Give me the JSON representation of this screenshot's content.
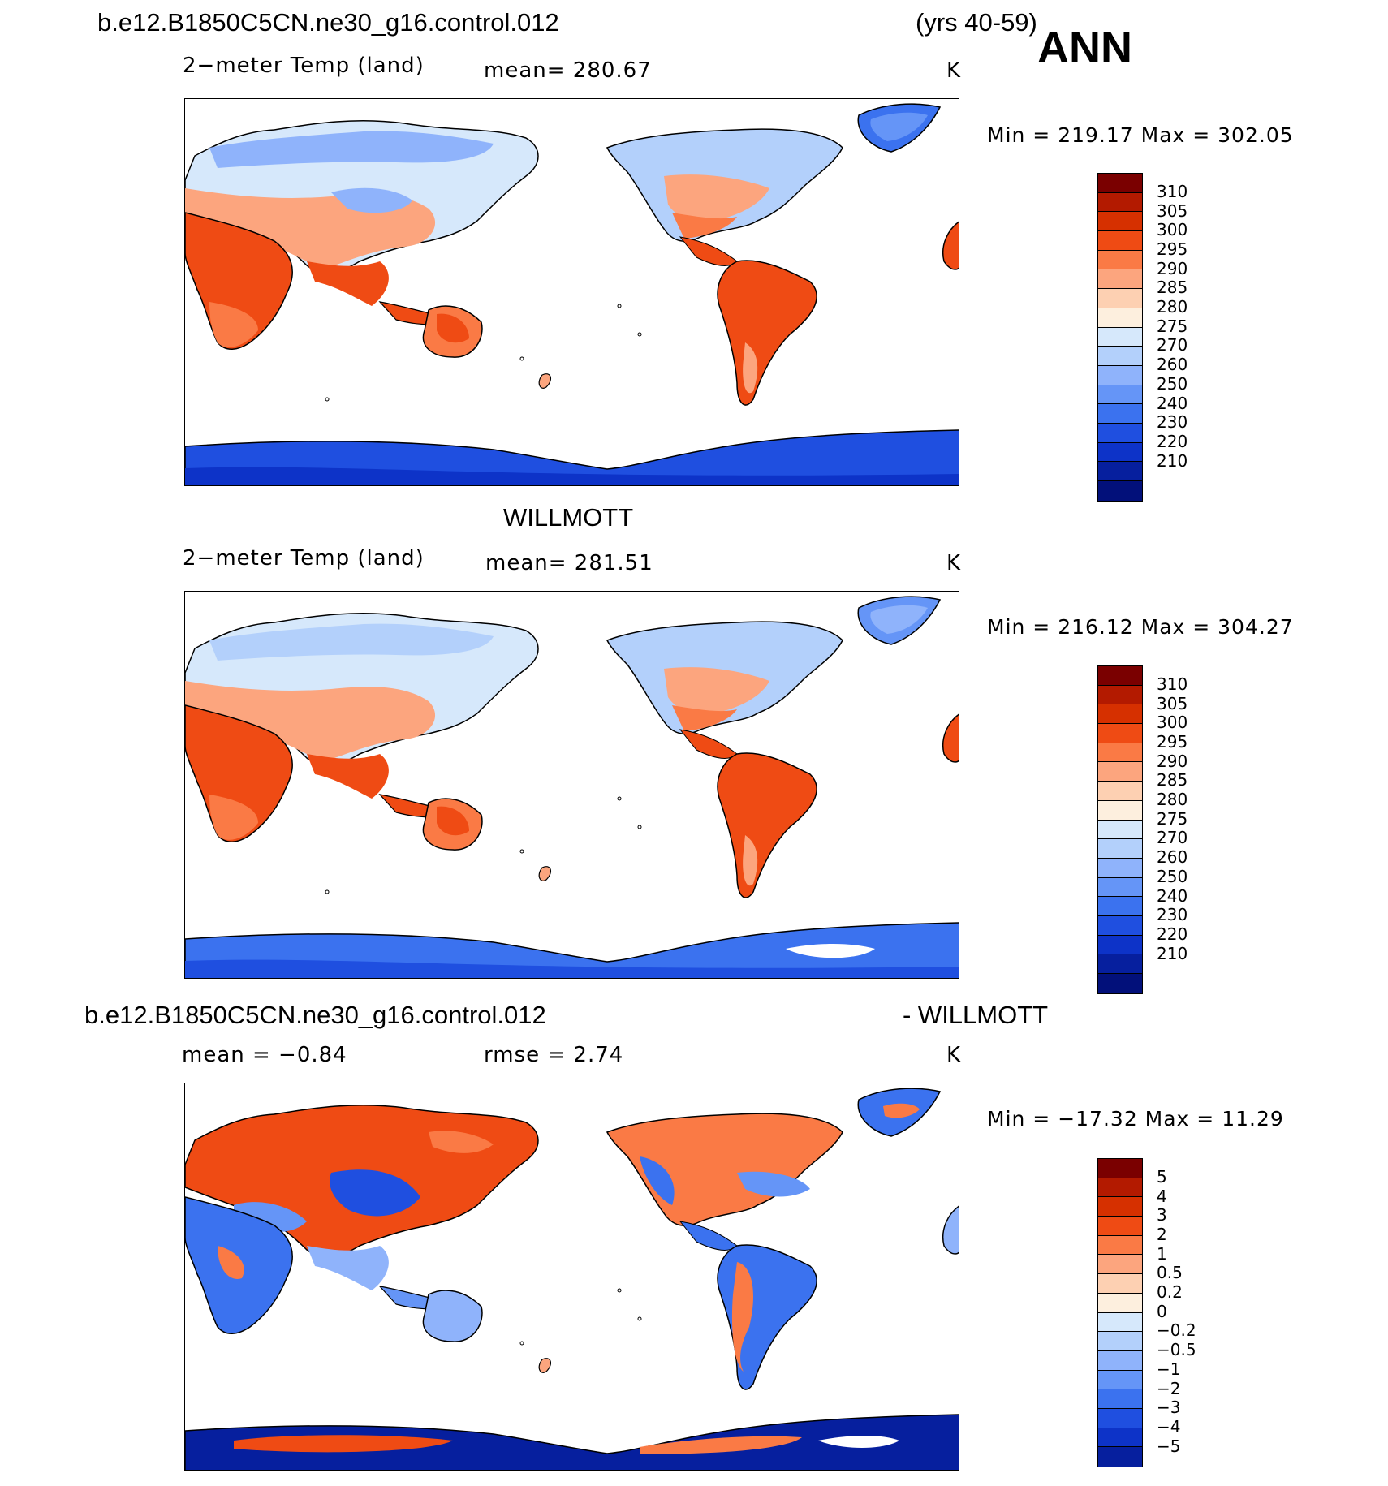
{
  "header": {
    "case_name": "b.e12.B1850C5CN.ne30_g16.control.012",
    "years": "(yrs 40-59)",
    "season": "ANN"
  },
  "panels": [
    {
      "title": "",
      "variable": "2−meter Temp (land)",
      "stat1": "mean=  280.67",
      "stat2": "",
      "units": "K",
      "minmax": "Min  =  219.17  Max  =  302.05",
      "map_type": "absolute"
    },
    {
      "title": "WILLMOTT",
      "variable": "2−meter Temp (land)",
      "stat1": "mean=  281.51",
      "stat2": "",
      "units": "K",
      "minmax": "Min  =  216.12  Max  =  304.27",
      "map_type": "absolute"
    },
    {
      "title_left": "b.e12.B1850C5CN.ne30_g16.control.012",
      "title_right": "- WILLMOTT",
      "variable": "",
      "stat1": "mean  =     −0.84",
      "stat2": "rmse  =     2.74",
      "units": "K",
      "minmax": "Min  =  −17.32  Max  =     11.29",
      "map_type": "difference"
    }
  ],
  "colorbar_abs": {
    "colors": [
      "#7a0000",
      "#b31a00",
      "#d63000",
      "#ef4b14",
      "#fa7a45",
      "#fca57e",
      "#fdd0b2",
      "#fdefde",
      "#d6e8fb",
      "#b3d0fb",
      "#8fb3fb",
      "#6595f7",
      "#3b72ef",
      "#1f4fe0",
      "#0d33c8",
      "#061f9e",
      "#02107a"
    ],
    "labels": [
      "310",
      "305",
      "300",
      "295",
      "290",
      "285",
      "280",
      "275",
      "270",
      "260",
      "250",
      "240",
      "230",
      "220",
      "210"
    ]
  },
  "colorbar_diff": {
    "colors": [
      "#7a0000",
      "#b31a00",
      "#d63000",
      "#ef4b14",
      "#fa7a45",
      "#fca57e",
      "#fdd0b2",
      "#fdefde",
      "#d6e8fb",
      "#b3d0fb",
      "#8fb3fb",
      "#6595f7",
      "#3b72ef",
      "#1f4fe0",
      "#0d33c8",
      "#061f9e"
    ],
    "labels": [
      "5",
      "4",
      "3",
      "2",
      "1",
      "0.5",
      "0.2",
      "0",
      "−0.2",
      "−0.5",
      "−1",
      "−2",
      "−3",
      "−4",
      "−5"
    ]
  }
}
